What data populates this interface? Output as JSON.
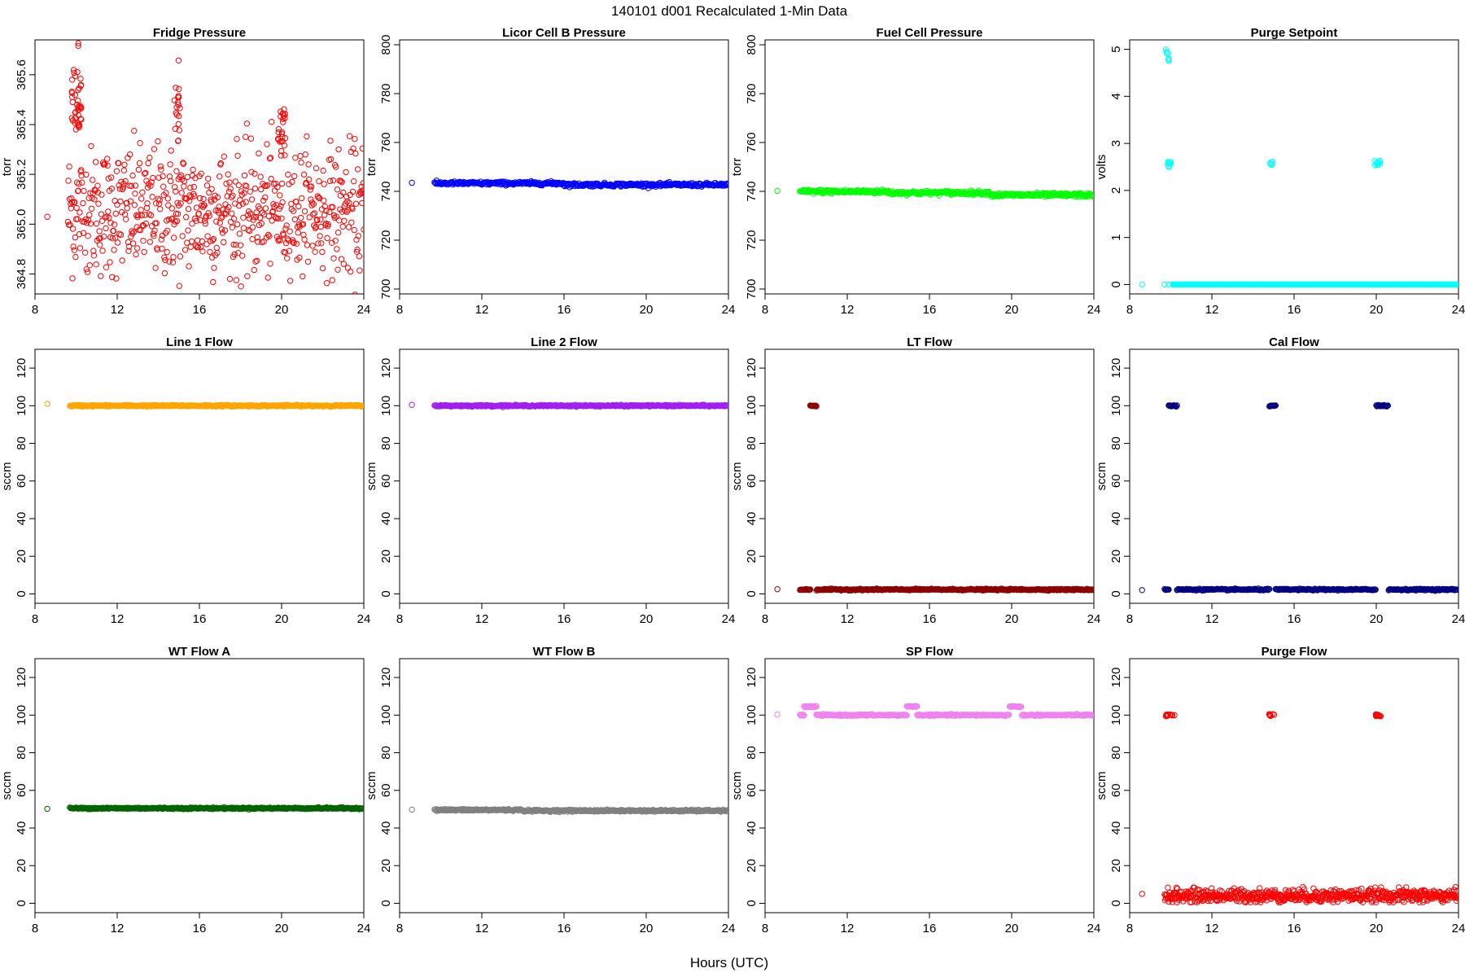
{
  "figure": {
    "title": "140101    d001    Recalculated 1-Min Data",
    "xlabel": "Hours (UTC)"
  },
  "chart_data": [
    {
      "type": "scatter",
      "title": "Fridge Pressure",
      "ylabel": "torr",
      "color": "#ff0000",
      "xlim": [
        8,
        24
      ],
      "xticks": [
        8,
        12,
        16,
        20,
        24
      ],
      "ylim": [
        364.72,
        365.74
      ],
      "yticks": [
        364.8,
        365.0,
        365.2,
        365.4,
        365.6
      ],
      "ytick_labels": [
        "364.8",
        "365.0",
        "365.2",
        "365.4",
        "365.6"
      ],
      "isolated": [
        [
          8.6,
          365.03
        ]
      ],
      "bands": [
        [
          9.6,
          24.0,
          365.05,
          0.13
        ]
      ],
      "clusters": [
        [
          10.0,
          365.5,
          0.25,
          0.12,
          40
        ],
        [
          14.9,
          365.45,
          0.15,
          0.12,
          18
        ],
        [
          20.0,
          365.38,
          0.18,
          0.1,
          22
        ],
        [
          10.1,
          365.72,
          0.05,
          0.02,
          2
        ],
        [
          15.0,
          365.65,
          0.03,
          0.01,
          1
        ]
      ]
    },
    {
      "type": "scatter",
      "title": "Licor Cell B Pressure",
      "ylabel": "torr",
      "color": "#0000ff",
      "xlim": [
        8,
        24
      ],
      "xticks": [
        8,
        12,
        16,
        20,
        24
      ],
      "ylim": [
        698,
        802
      ],
      "yticks": [
        700,
        720,
        740,
        760,
        780,
        800
      ],
      "ytick_labels": [
        "700",
        "720",
        "740",
        "760",
        "780",
        "800"
      ],
      "isolated": [
        [
          8.6,
          743.5
        ]
      ],
      "bands": [
        [
          9.7,
          16.0,
          743.3,
          0.35
        ],
        [
          16.0,
          24.0,
          742.7,
          0.35
        ]
      ],
      "clusters": []
    },
    {
      "type": "scatter",
      "title": "Fuel Cell Pressure",
      "ylabel": "torr",
      "color": "#00ff00",
      "xlim": [
        8,
        24
      ],
      "xticks": [
        8,
        12,
        16,
        20,
        24
      ],
      "ylim": [
        698,
        802
      ],
      "yticks": [
        700,
        720,
        740,
        760,
        780,
        800
      ],
      "ytick_labels": [
        "700",
        "720",
        "740",
        "760",
        "780",
        "800"
      ],
      "isolated": [
        [
          8.6,
          740.2
        ]
      ],
      "bands": [
        [
          9.7,
          14.0,
          739.9,
          0.4
        ],
        [
          14.0,
          19.0,
          739.4,
          0.4
        ],
        [
          19.0,
          24.0,
          738.5,
          0.4
        ]
      ],
      "clusters": []
    },
    {
      "type": "scatter",
      "title": "Purge Setpoint",
      "ylabel": "volts",
      "color": "#00ffff",
      "xlim": [
        8,
        24
      ],
      "xticks": [
        8,
        12,
        16,
        20,
        24
      ],
      "ylim": [
        -0.2,
        5.2
      ],
      "yticks": [
        0,
        1,
        2,
        3,
        4,
        5
      ],
      "ytick_labels": [
        "0",
        "1",
        "2",
        "3",
        "4",
        "5"
      ],
      "isolated": [
        [
          8.6,
          0.0
        ],
        [
          9.7,
          0.0
        ],
        [
          9.9,
          0.0
        ]
      ],
      "bands": [
        [
          10.1,
          24.0,
          0.0,
          0.0
        ]
      ],
      "clusters": [
        [
          9.85,
          4.95,
          0.1,
          0.05,
          4
        ],
        [
          9.9,
          4.78,
          0.05,
          0.03,
          3
        ],
        [
          9.95,
          2.55,
          0.15,
          0.06,
          10
        ],
        [
          14.9,
          2.57,
          0.08,
          0.05,
          6
        ],
        [
          20.05,
          2.58,
          0.15,
          0.06,
          10
        ]
      ]
    },
    {
      "type": "scatter",
      "title": "Line 1 Flow",
      "ylabel": "sccm",
      "color": "#ffa500",
      "xlim": [
        8,
        24
      ],
      "xticks": [
        8,
        12,
        16,
        20,
        24
      ],
      "ylim": [
        -5,
        130
      ],
      "yticks": [
        0,
        20,
        40,
        60,
        80,
        100,
        120
      ],
      "ytick_labels": [
        "0",
        "20",
        "40",
        "60",
        "80",
        "100",
        "120"
      ],
      "isolated": [
        [
          8.6,
          101.0
        ]
      ],
      "bands": [
        [
          9.7,
          24.0,
          100.0,
          0.2
        ]
      ],
      "clusters": []
    },
    {
      "type": "scatter",
      "title": "Line 2 Flow",
      "ylabel": "sccm",
      "color": "#a020f0",
      "xlim": [
        8,
        24
      ],
      "xticks": [
        8,
        12,
        16,
        20,
        24
      ],
      "ylim": [
        -5,
        130
      ],
      "yticks": [
        0,
        20,
        40,
        60,
        80,
        100,
        120
      ],
      "ytick_labels": [
        "0",
        "20",
        "40",
        "60",
        "80",
        "100",
        "120"
      ],
      "isolated": [
        [
          8.6,
          100.5
        ]
      ],
      "bands": [
        [
          9.7,
          24.0,
          100.0,
          0.2
        ]
      ],
      "clusters": []
    },
    {
      "type": "scatter",
      "title": "LT Flow",
      "ylabel": "sccm",
      "color": "#8b0000",
      "xlim": [
        8,
        24
      ],
      "xticks": [
        8,
        12,
        16,
        20,
        24
      ],
      "ylim": [
        -5,
        130
      ],
      "yticks": [
        0,
        20,
        40,
        60,
        80,
        100,
        120
      ],
      "ytick_labels": [
        "0",
        "20",
        "40",
        "60",
        "80",
        "100",
        "120"
      ],
      "isolated": [
        [
          8.6,
          2.5
        ]
      ],
      "bands": [
        [
          9.7,
          10.2,
          2.3,
          0.2
        ],
        [
          10.5,
          24.0,
          2.3,
          0.2
        ],
        [
          10.2,
          10.5,
          100.0,
          0.2
        ]
      ],
      "clusters": []
    },
    {
      "type": "scatter",
      "title": "Cal Flow",
      "ylabel": "sccm",
      "color": "#000080",
      "xlim": [
        8,
        24
      ],
      "xticks": [
        8,
        12,
        16,
        20,
        24
      ],
      "ylim": [
        -5,
        130
      ],
      "yticks": [
        0,
        20,
        40,
        60,
        80,
        100,
        120
      ],
      "ytick_labels": [
        "0",
        "20",
        "40",
        "60",
        "80",
        "100",
        "120"
      ],
      "isolated": [
        [
          8.6,
          2.0
        ]
      ],
      "bands": [
        [
          9.7,
          9.9,
          2.3,
          0.2
        ],
        [
          10.3,
          14.8,
          2.3,
          0.2
        ],
        [
          15.1,
          20.0,
          2.3,
          0.2
        ],
        [
          20.6,
          24.0,
          2.3,
          0.2
        ],
        [
          9.9,
          10.3,
          100.0,
          0.2
        ],
        [
          14.8,
          15.1,
          100.0,
          0.2
        ],
        [
          20.0,
          20.6,
          100.0,
          0.2
        ]
      ],
      "clusters": []
    },
    {
      "type": "scatter",
      "title": "WT Flow A",
      "ylabel": "sccm",
      "color": "#006400",
      "xlim": [
        8,
        24
      ],
      "xticks": [
        8,
        12,
        16,
        20,
        24
      ],
      "ylim": [
        -5,
        130
      ],
      "yticks": [
        0,
        20,
        40,
        60,
        80,
        100,
        120
      ],
      "ytick_labels": [
        "0",
        "20",
        "40",
        "60",
        "80",
        "100",
        "120"
      ],
      "isolated": [
        [
          8.6,
          50.2
        ]
      ],
      "bands": [
        [
          9.7,
          24.0,
          50.5,
          0.2
        ]
      ],
      "clusters": []
    },
    {
      "type": "scatter",
      "title": "WT Flow B",
      "ylabel": "sccm",
      "color": "#808080",
      "xlim": [
        8,
        24
      ],
      "xticks": [
        8,
        12,
        16,
        20,
        24
      ],
      "ylim": [
        -5,
        130
      ],
      "yticks": [
        0,
        20,
        40,
        60,
        80,
        100,
        120
      ],
      "ytick_labels": [
        "0",
        "20",
        "40",
        "60",
        "80",
        "100",
        "120"
      ],
      "isolated": [
        [
          8.6,
          49.8
        ]
      ],
      "bands": [
        [
          9.7,
          14.0,
          49.6,
          0.25
        ],
        [
          14.0,
          24.0,
          49.2,
          0.25
        ]
      ],
      "clusters": []
    },
    {
      "type": "scatter",
      "title": "SP Flow",
      "ylabel": "sccm",
      "color": "#ee82ee",
      "xlim": [
        8,
        24
      ],
      "xticks": [
        8,
        12,
        16,
        20,
        24
      ],
      "ylim": [
        -5,
        130
      ],
      "yticks": [
        0,
        20,
        40,
        60,
        80,
        100,
        120
      ],
      "ytick_labels": [
        "0",
        "20",
        "40",
        "60",
        "80",
        "100",
        "120"
      ],
      "isolated": [
        [
          8.6,
          100.3
        ]
      ],
      "bands": [
        [
          9.7,
          9.9,
          100.0,
          0.2
        ],
        [
          10.5,
          14.9,
          100.0,
          0.2
        ],
        [
          15.4,
          19.9,
          100.0,
          0.2
        ],
        [
          20.5,
          24.0,
          100.0,
          0.2
        ],
        [
          9.9,
          10.5,
          104.5,
          0.2
        ],
        [
          14.9,
          15.4,
          104.5,
          0.2
        ],
        [
          19.9,
          20.5,
          104.5,
          0.2
        ]
      ],
      "clusters": []
    },
    {
      "type": "scatter",
      "title": "Purge Flow",
      "ylabel": "sccm",
      "color": "#ff0000",
      "xlim": [
        8,
        24
      ],
      "xticks": [
        8,
        12,
        16,
        20,
        24
      ],
      "ylim": [
        -5,
        130
      ],
      "yticks": [
        0,
        20,
        40,
        60,
        80,
        100,
        120
      ],
      "ytick_labels": [
        "0",
        "20",
        "40",
        "60",
        "80",
        "100",
        "120"
      ],
      "isolated": [
        [
          8.6,
          5.0
        ]
      ],
      "bands": [
        [
          9.7,
          24.0,
          4.0,
          1.8
        ]
      ],
      "clusters": [
        [
          10.0,
          100.0,
          0.25,
          0.6,
          14
        ],
        [
          14.9,
          100.0,
          0.15,
          0.6,
          8
        ],
        [
          20.1,
          100.0,
          0.2,
          0.6,
          12
        ]
      ]
    }
  ]
}
